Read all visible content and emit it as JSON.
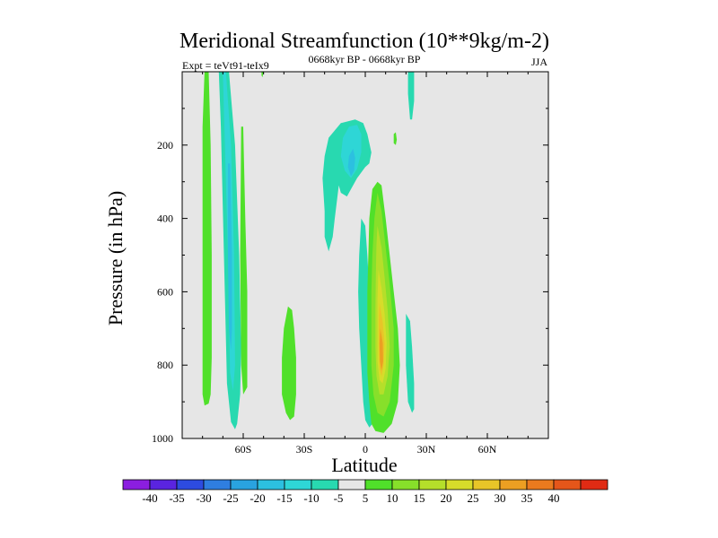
{
  "chart_data": {
    "type": "contour",
    "title": "Meridional Streamfunction (10**9kg/m-2)",
    "subtitle": "0668kyr BP - 0668kyr BP",
    "experiment": "Expt = teVt91-teIx9",
    "season": "JJA",
    "xlabel": "Latitude",
    "ylabel": "Pressure (in hPa)",
    "xlim": [
      -90,
      90
    ],
    "ylim": [
      1000,
      0
    ],
    "xticks": [
      {
        "v": -60,
        "label": "60S"
      },
      {
        "v": -30,
        "label": "30S"
      },
      {
        "v": 0,
        "label": "0"
      },
      {
        "v": 30,
        "label": "30N"
      },
      {
        "v": 60,
        "label": "60N"
      }
    ],
    "yticks": [
      {
        "v": 200,
        "label": "200"
      },
      {
        "v": 400,
        "label": "400"
      },
      {
        "v": 600,
        "label": "600"
      },
      {
        "v": 800,
        "label": "800"
      },
      {
        "v": 1000,
        "label": "1000"
      }
    ],
    "background": "#e6e6e6",
    "colorbar": {
      "colors": [
        "#8b1ee0",
        "#5a24e0",
        "#2d4be0",
        "#2f7ee0",
        "#29a3e0",
        "#2cc0e0",
        "#2ed6d6",
        "#28d9b0",
        "#e6e6e6",
        "#50e02a",
        "#87e02a",
        "#b5df2a",
        "#d7dc2a",
        "#e8c528",
        "#ec9f22",
        "#ea7a1e",
        "#e5561a",
        "#e02b14"
      ],
      "labels": [
        "-40",
        "-35",
        "-30",
        "-25",
        "-20",
        "-15",
        "-10",
        "-5",
        "5",
        "10",
        "15",
        "20",
        "25",
        "30",
        "35",
        "40"
      ]
    },
    "features": [
      {
        "name": "sh-green-column",
        "level": 5,
        "points": [
          [
            -79,
            0
          ],
          [
            -77,
            0
          ],
          [
            -76,
            200
          ],
          [
            -75.5,
            500
          ],
          [
            -75.5,
            780
          ],
          [
            -76,
            880
          ],
          [
            -77,
            905
          ],
          [
            -79,
            910
          ],
          [
            -80,
            880
          ],
          [
            -80,
            500
          ],
          [
            -80,
            150
          ]
        ]
      },
      {
        "name": "sh-blue-column",
        "level": -5,
        "points": [
          [
            -72,
            0
          ],
          [
            -67,
            0
          ],
          [
            -64,
            200
          ],
          [
            -62,
            500
          ],
          [
            -61,
            750
          ],
          [
            -61.5,
            880
          ],
          [
            -63,
            960
          ],
          [
            -64,
            975
          ],
          [
            -66,
            955
          ],
          [
            -68,
            850
          ],
          [
            -69.5,
            500
          ],
          [
            -71,
            150
          ]
        ]
      },
      {
        "name": "sh-blue-column-inner",
        "level": -10,
        "points": [
          [
            -70,
            0
          ],
          [
            -68.5,
            0
          ],
          [
            -66,
            200
          ],
          [
            -64.5,
            500
          ],
          [
            -64,
            800
          ],
          [
            -65,
            870
          ],
          [
            -66.5,
            820
          ],
          [
            -67.5,
            500
          ],
          [
            -69,
            200
          ]
        ]
      },
      {
        "name": "sh-blue-column-core",
        "level": -15,
        "points": [
          [
            -67.5,
            250
          ],
          [
            -66.5,
            250
          ],
          [
            -65.5,
            500
          ],
          [
            -65.5,
            700
          ],
          [
            -66,
            760
          ],
          [
            -67,
            700
          ],
          [
            -67.5,
            500
          ]
        ]
      },
      {
        "name": "sh-green-band-outer",
        "level": 5,
        "points": [
          [
            -61,
            150
          ],
          [
            -60,
            150
          ],
          [
            -59,
            400
          ],
          [
            -58,
            600
          ],
          [
            -58,
            860
          ],
          [
            -60,
            880
          ],
          [
            -61,
            800
          ],
          [
            -61.5,
            500
          ]
        ]
      },
      {
        "name": "sh-green-blob",
        "level": 5,
        "points": [
          [
            -38,
            640
          ],
          [
            -36,
            650
          ],
          [
            -35,
            700
          ],
          [
            -34,
            780
          ],
          [
            -34,
            880
          ],
          [
            -35,
            940
          ],
          [
            -37,
            950
          ],
          [
            -39,
            930
          ],
          [
            -41,
            880
          ],
          [
            -41,
            780
          ],
          [
            -40,
            700
          ]
        ]
      },
      {
        "name": "upper-cell-outer",
        "level": -5,
        "points": [
          [
            -20,
            230
          ],
          [
            -18,
            180
          ],
          [
            -12,
            140
          ],
          [
            -5,
            130
          ],
          [
            -1,
            140
          ],
          [
            1,
            170
          ],
          [
            3,
            220
          ],
          [
            2,
            250
          ],
          [
            0,
            260
          ],
          [
            -4,
            290
          ],
          [
            -7,
            320
          ],
          [
            -9,
            340
          ],
          [
            -12,
            330
          ],
          [
            -13,
            310
          ],
          [
            -15,
            400
          ],
          [
            -16,
            450
          ],
          [
            -18,
            490
          ],
          [
            -20,
            450
          ],
          [
            -20,
            380
          ],
          [
            -21,
            290
          ]
        ]
      },
      {
        "name": "upper-cell-inner",
        "level": -10,
        "points": [
          [
            -11,
            180
          ],
          [
            -8,
            150
          ],
          [
            -4,
            145
          ],
          [
            -2,
            170
          ],
          [
            -2,
            220
          ],
          [
            -4,
            265
          ],
          [
            -7,
            290
          ],
          [
            -10,
            270
          ],
          [
            -12,
            230
          ]
        ]
      },
      {
        "name": "upper-cell-core",
        "level": -15,
        "points": [
          [
            -8,
            230
          ],
          [
            -6,
            210
          ],
          [
            -5,
            235
          ],
          [
            -5.5,
            270
          ],
          [
            -7,
            285
          ],
          [
            -8.5,
            260
          ]
        ]
      },
      {
        "name": "nh-blue-strip",
        "level": -5,
        "points": [
          [
            -2,
            400
          ],
          [
            0,
            420
          ],
          [
            1,
            500
          ],
          [
            2,
            600
          ],
          [
            3,
            700
          ],
          [
            4,
            800
          ],
          [
            4,
            900
          ],
          [
            3.5,
            960
          ],
          [
            2,
            970
          ],
          [
            0,
            950
          ],
          [
            -1,
            900
          ],
          [
            -2,
            800
          ],
          [
            -3,
            700
          ],
          [
            -3.5,
            600
          ],
          [
            -3,
            500
          ]
        ]
      },
      {
        "name": "hadley-cell-outer",
        "level": 5,
        "points": [
          [
            6,
            300
          ],
          [
            8,
            310
          ],
          [
            10,
            400
          ],
          [
            12,
            500
          ],
          [
            14,
            600
          ],
          [
            16,
            700
          ],
          [
            17,
            800
          ],
          [
            16,
            900
          ],
          [
            13,
            960
          ],
          [
            9,
            985
          ],
          [
            5,
            980
          ],
          [
            3,
            960
          ],
          [
            2,
            900
          ],
          [
            1,
            820
          ],
          [
            1,
            700
          ],
          [
            1,
            600
          ],
          [
            1.5,
            500
          ],
          [
            2,
            400
          ],
          [
            3.5,
            320
          ]
        ]
      },
      {
        "name": "hadley-cell-10",
        "level": 10,
        "points": [
          [
            6,
            330
          ],
          [
            8,
            380
          ],
          [
            10,
            480
          ],
          [
            12,
            580
          ],
          [
            14,
            700
          ],
          [
            14,
            800
          ],
          [
            12,
            900
          ],
          [
            9,
            940
          ],
          [
            6,
            930
          ],
          [
            4,
            880
          ],
          [
            3,
            800
          ],
          [
            3,
            700
          ],
          [
            3,
            600
          ],
          [
            3.5,
            500
          ],
          [
            4.5,
            400
          ]
        ]
      },
      {
        "name": "hadley-cell-15",
        "level": 15,
        "points": [
          [
            6,
            420
          ],
          [
            8,
            480
          ],
          [
            9.5,
            560
          ],
          [
            11,
            650
          ],
          [
            12,
            750
          ],
          [
            11,
            830
          ],
          [
            9,
            880
          ],
          [
            7,
            880
          ],
          [
            5.5,
            830
          ],
          [
            5,
            750
          ],
          [
            5,
            650
          ],
          [
            5.2,
            550
          ],
          [
            5.5,
            470
          ]
        ]
      },
      {
        "name": "hadley-cell-20",
        "level": 20,
        "points": [
          [
            6.5,
            540
          ],
          [
            8,
            590
          ],
          [
            9.5,
            660
          ],
          [
            10.5,
            740
          ],
          [
            10,
            810
          ],
          [
            8.5,
            850
          ],
          [
            7,
            840
          ],
          [
            6,
            790
          ],
          [
            6,
            700
          ],
          [
            6,
            620
          ]
        ]
      },
      {
        "name": "hadley-cell-25",
        "level": 25,
        "points": [
          [
            7,
            630
          ],
          [
            8.5,
            680
          ],
          [
            9.5,
            740
          ],
          [
            9,
            800
          ],
          [
            8,
            830
          ],
          [
            7,
            810
          ],
          [
            6.6,
            750
          ],
          [
            6.6,
            680
          ]
        ]
      },
      {
        "name": "hadley-cell-30",
        "level": 30,
        "points": [
          [
            7.4,
            700
          ],
          [
            8.6,
            740
          ],
          [
            8.8,
            790
          ],
          [
            8,
            815
          ],
          [
            7.2,
            790
          ],
          [
            7,
            740
          ]
        ]
      },
      {
        "name": "nh-subtropic-strip",
        "level": -5,
        "points": [
          [
            20,
            660
          ],
          [
            22,
            680
          ],
          [
            23,
            750
          ],
          [
            24,
            850
          ],
          [
            24,
            920
          ],
          [
            23,
            930
          ],
          [
            21,
            900
          ],
          [
            20,
            800
          ]
        ]
      },
      {
        "name": "nh-upper-green-strip",
        "level": 5,
        "points": [
          [
            14,
            170
          ],
          [
            15,
            165
          ],
          [
            15.5,
            185
          ],
          [
            15,
            200
          ],
          [
            14,
            195
          ]
        ]
      },
      {
        "name": "nh-top-strip",
        "level": -5,
        "points": [
          [
            21,
            0
          ],
          [
            24,
            0
          ],
          [
            24,
            80
          ],
          [
            23,
            130
          ],
          [
            22,
            130
          ],
          [
            21,
            60
          ]
        ]
      },
      {
        "name": "nh-top-green-small",
        "level": 5,
        "points": [
          [
            -51,
            0
          ],
          [
            -50,
            0
          ],
          [
            -50.5,
            15
          ],
          [
            -51,
            10
          ]
        ]
      }
    ]
  }
}
